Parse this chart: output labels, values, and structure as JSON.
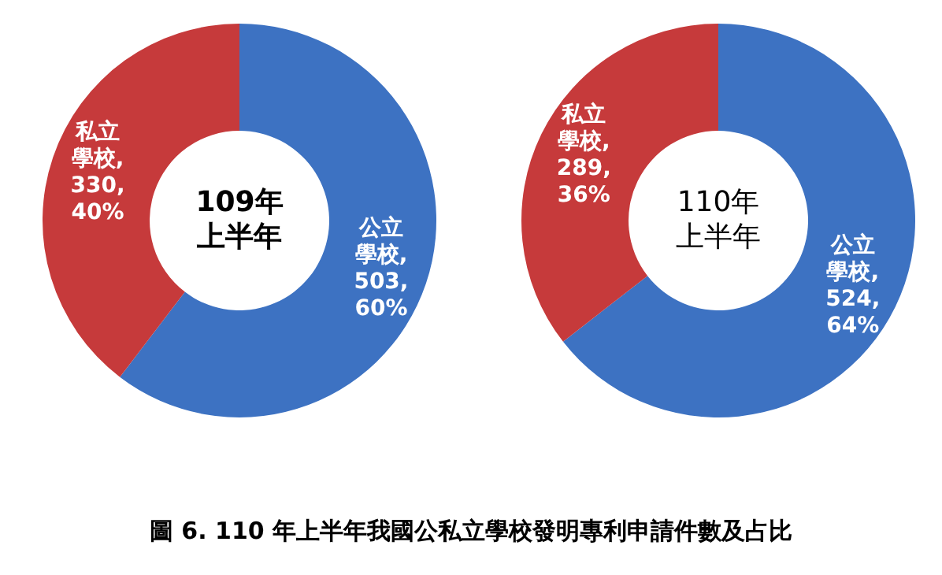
{
  "chart_data": [
    {
      "type": "donut",
      "title": "109年上半年",
      "categories": [
        "公立學校",
        "私立學校"
      ],
      "values": [
        503,
        330
      ],
      "colors": [
        "#3d72c2",
        "#c63a3b"
      ],
      "value_labels": [
        ", 503, 60%",
        ", 330, 40%"
      ],
      "annotations": [
        "圖 6. 110 年上半年我國公私立學校發明專利申請件數及占比"
      ]
    },
    {
      "type": "donut",
      "title": "110年上半年",
      "categories": [
        "公立學校",
        "私立學校"
      ],
      "values": [
        524,
        289
      ],
      "colors": [
        "#3d72c2",
        "#c63a3b"
      ],
      "value_labels": [
        ", 524, 64%",
        ", 289, 36%"
      ]
    }
  ]
}
